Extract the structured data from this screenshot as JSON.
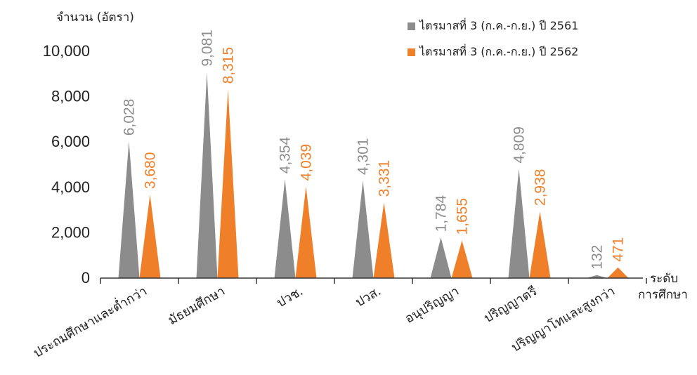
{
  "chart_data": {
    "type": "bar",
    "ylabel": "จำนวน (อัตรา)",
    "xlabel_line1": "ระดับ",
    "xlabel_line2": "การศึกษา",
    "categories": [
      "ประถมศึกษาและต่ำกว่า",
      "มัธยมศึกษา",
      "ปวช.",
      "ปวส.",
      "อนุปริญญา",
      "ปริญญาตรี",
      "ปริญญาโทและสูงกว่า"
    ],
    "series": [
      {
        "name": "ไตรมาสที่ 3 (ก.ค.-ก.ย.) ปี 2561",
        "color": "#8c8c8c",
        "values": [
          6028,
          9081,
          4354,
          4301,
          1784,
          4809,
          132
        ]
      },
      {
        "name": "ไตรมาสที่ 3 (ก.ค.-ก.ย.) ปี 2562",
        "color": "#f07f29",
        "values": [
          3680,
          8315,
          4039,
          3331,
          1655,
          2938,
          471
        ]
      }
    ],
    "value_labels": [
      [
        "6,028",
        "9,081",
        "4,354",
        "4,301",
        "1,784",
        "4,809",
        "132"
      ],
      [
        "3,680",
        "8,315",
        "4,039",
        "3,331",
        "1,655",
        "2,938",
        "471"
      ]
    ],
    "yticks": [
      "0",
      "2,000",
      "4,000",
      "6,000",
      "8,000",
      "10,000"
    ],
    "ytick_values": [
      0,
      2000,
      4000,
      6000,
      8000,
      10000
    ],
    "ylim": [
      0,
      10000
    ],
    "grid": false,
    "legend_position": "top-right"
  }
}
